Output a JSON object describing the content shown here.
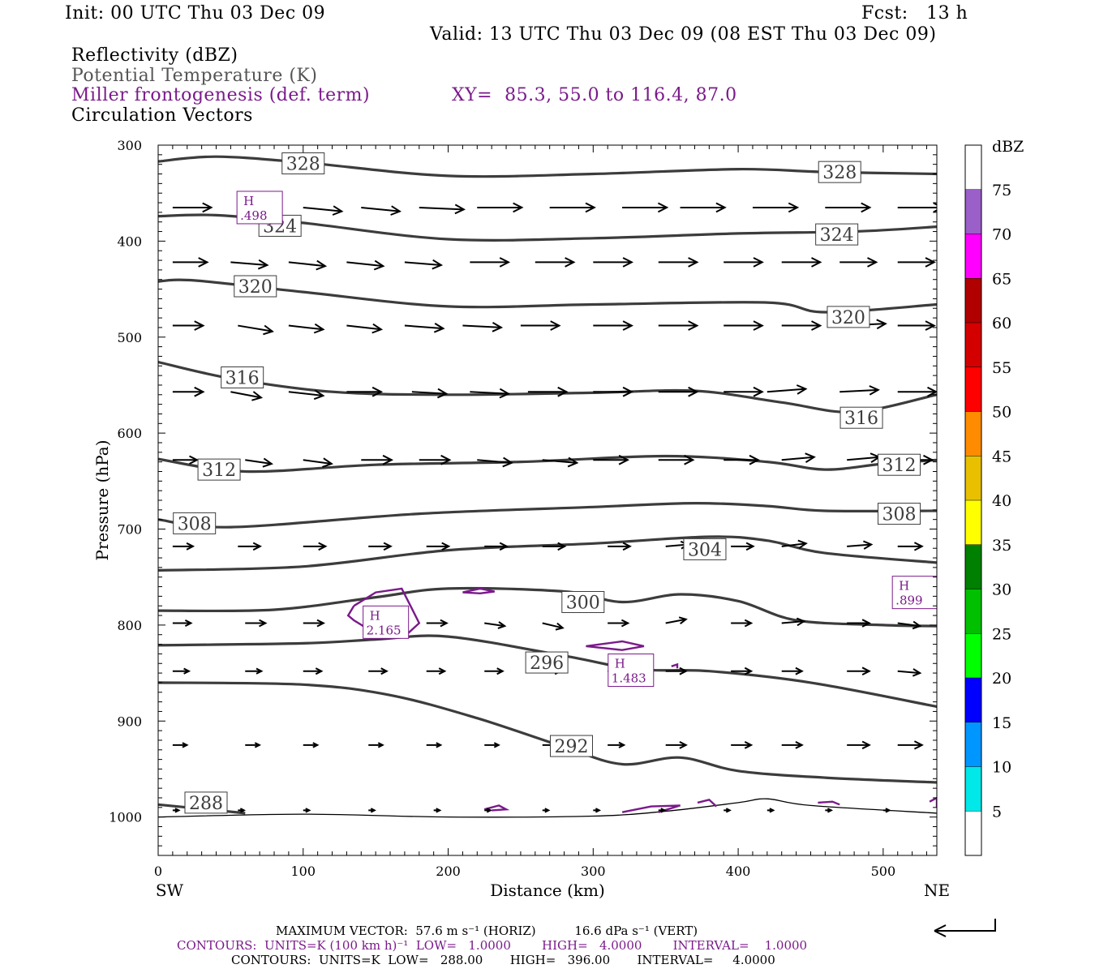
{
  "header": {
    "init": "Init: 00 UTC Thu 03 Dec 09",
    "fcst": "Fcst:   13 h",
    "valid": "Valid: 13 UTC Thu 03 Dec 09 (08 EST Thu 03 Dec 09)",
    "field1": "Reflectivity (dBZ)",
    "field2": "Potential Temperature (K)",
    "field3": "Miller frontogenesis (def. term)",
    "xy": "XY=  85.3, 55.0 to 116.4, 87.0",
    "field4": "Circulation Vectors"
  },
  "footer": {
    "max_vector": "MAXIMUM VECTOR:  57.6 m s⁻¹ (HORIZ)          16.6 dPa s⁻¹ (VERT)",
    "contours_purple": "CONTOURS:  UNITS=K (100 km h)⁻¹  LOW=   1.0000        HIGH=   4.0000        INTERVAL=    1.0000",
    "contours_black": "CONTOURS:  UNITS=K  LOW=   288.00       HIGH=   396.00       INTERVAL=     4.0000"
  },
  "colors": {
    "theta": "#3c3c3c",
    "frontogenesis": "#7a1a8a",
    "vectors": "#000000"
  },
  "chart_data": {
    "type": "cross-section",
    "xlabel": "Distance (km)",
    "ylabel": "Pressure (hPa)",
    "xlim": [
      0,
      537
    ],
    "ylim": [
      1040,
      300
    ],
    "x_ticks": [
      0,
      100,
      200,
      300,
      400,
      500
    ],
    "y_ticks": [
      300,
      400,
      500,
      600,
      700,
      800,
      900,
      1000
    ],
    "left_end": "SW",
    "right_end": "NE",
    "colorbar": {
      "title": "dBZ",
      "labels": [
        "75",
        "70",
        "65",
        "60",
        "55",
        "50",
        "45",
        "40",
        "35",
        "30",
        "25",
        "20",
        "15",
        "10",
        "5"
      ],
      "colors": [
        "#ffffff",
        "#9a5fc8",
        "#ff00ff",
        "#b00000",
        "#d40000",
        "#ff0000",
        "#ff8c00",
        "#e8c000",
        "#ffff00",
        "#008000",
        "#00c000",
        "#00ff00",
        "#0000ff",
        "#0096ff",
        "#00e8e8",
        "#ffffff"
      ]
    },
    "theta_contours": [
      {
        "value": 328,
        "points": [
          [
            0,
            317
          ],
          [
            40,
            312
          ],
          [
            100,
            318
          ],
          [
            200,
            332
          ],
          [
            300,
            330
          ],
          [
            400,
            325
          ],
          [
            460,
            328
          ],
          [
            537,
            330
          ]
        ]
      },
      {
        "value": 324,
        "points": [
          [
            0,
            374
          ],
          [
            40,
            373
          ],
          [
            100,
            381
          ],
          [
            200,
            398
          ],
          [
            300,
            397
          ],
          [
            400,
            392
          ],
          [
            480,
            390
          ],
          [
            537,
            385
          ]
        ]
      },
      {
        "value": 320,
        "points": [
          [
            0,
            442
          ],
          [
            25,
            441
          ],
          [
            100,
            453
          ],
          [
            200,
            468
          ],
          [
            300,
            466
          ],
          [
            420,
            464
          ],
          [
            460,
            474
          ],
          [
            537,
            466
          ]
        ]
      },
      {
        "value": 316,
        "points": [
          [
            0,
            526
          ],
          [
            50,
            543
          ],
          [
            120,
            557
          ],
          [
            200,
            560
          ],
          [
            300,
            558
          ],
          [
            370,
            556
          ],
          [
            430,
            568
          ],
          [
            480,
            578
          ],
          [
            537,
            560
          ]
        ]
      },
      {
        "value": 312,
        "points": [
          [
            0,
            627
          ],
          [
            60,
            640
          ],
          [
            150,
            633
          ],
          [
            250,
            630
          ],
          [
            350,
            624
          ],
          [
            420,
            630
          ],
          [
            460,
            638
          ],
          [
            500,
            632
          ],
          [
            537,
            628
          ]
        ]
      },
      {
        "value": 308,
        "points": [
          [
            0,
            690
          ],
          [
            50,
            698
          ],
          [
            180,
            684
          ],
          [
            300,
            677
          ],
          [
            370,
            673
          ],
          [
            420,
            676
          ],
          [
            460,
            681
          ],
          [
            537,
            681
          ]
        ]
      },
      {
        "value": 304,
        "points": [
          [
            0,
            743
          ],
          [
            100,
            739
          ],
          [
            200,
            722
          ],
          [
            300,
            715
          ],
          [
            380,
            708
          ],
          [
            420,
            712
          ],
          [
            460,
            725
          ],
          [
            537,
            735
          ]
        ]
      },
      {
        "value": 300,
        "points": [
          [
            0,
            785
          ],
          [
            80,
            784
          ],
          [
            150,
            771
          ],
          [
            200,
            762
          ],
          [
            280,
            765
          ],
          [
            320,
            776
          ],
          [
            360,
            768
          ],
          [
            400,
            775
          ],
          [
            440,
            795
          ],
          [
            500,
            800
          ],
          [
            537,
            801
          ]
        ]
      },
      {
        "value": 296,
        "points": [
          [
            0,
            821
          ],
          [
            100,
            819
          ],
          [
            150,
            815
          ],
          [
            200,
            812
          ],
          [
            280,
            832
          ],
          [
            330,
            846
          ],
          [
            380,
            848
          ],
          [
            450,
            860
          ],
          [
            537,
            885
          ]
        ]
      },
      {
        "value": 292,
        "points": [
          [
            0,
            860
          ],
          [
            100,
            862
          ],
          [
            160,
            873
          ],
          [
            220,
            897
          ],
          [
            280,
            927
          ],
          [
            320,
            945
          ],
          [
            360,
            938
          ],
          [
            400,
            952
          ],
          [
            460,
            959
          ],
          [
            537,
            964
          ]
        ]
      },
      {
        "value": 288,
        "points": [
          [
            0,
            987
          ],
          [
            60,
            996
          ]
        ]
      }
    ],
    "theta_labels": [
      {
        "text": "328",
        "x": 100,
        "p": 319
      },
      {
        "text": "328",
        "x": 470,
        "p": 328
      },
      {
        "text": "324",
        "x": 84,
        "p": 384
      },
      {
        "text": "324",
        "x": 468,
        "p": 393
      },
      {
        "text": "320",
        "x": 67,
        "p": 447
      },
      {
        "text": "320",
        "x": 476,
        "p": 479
      },
      {
        "text": "316",
        "x": 58,
        "p": 542
      },
      {
        "text": "316",
        "x": 485,
        "p": 584
      },
      {
        "text": "312",
        "x": 42,
        "p": 638
      },
      {
        "text": "312",
        "x": 511,
        "p": 633
      },
      {
        "text": "308",
        "x": 25,
        "p": 694
      },
      {
        "text": "308",
        "x": 511,
        "p": 684
      },
      {
        "text": "304",
        "x": 377,
        "p": 721
      },
      {
        "text": "300",
        "x": 293,
        "p": 776
      },
      {
        "text": "296",
        "x": 268,
        "p": 839
      },
      {
        "text": "292",
        "x": 285,
        "p": 926
      },
      {
        "text": "288",
        "x": 33,
        "p": 985
      }
    ],
    "ground": [
      [
        0,
        1000
      ],
      [
        100,
        997
      ],
      [
        200,
        1000
      ],
      [
        300,
        999
      ],
      [
        350,
        994
      ],
      [
        400,
        985
      ],
      [
        420,
        981
      ],
      [
        450,
        988
      ],
      [
        537,
        996
      ]
    ],
    "vector_rows": [
      {
        "p": 365,
        "xs": [
          10,
          55,
          100,
          140,
          180,
          220,
          270,
          320,
          360,
          410,
          460,
          510
        ],
        "u": [
          38,
          38,
          38,
          38,
          44,
          44,
          44,
          44,
          44,
          44,
          44,
          44
        ],
        "dp": [
          0,
          0,
          4,
          4,
          2,
          0,
          0,
          0,
          0,
          0,
          0,
          0
        ]
      },
      {
        "p": 422,
        "xs": [
          10,
          50,
          90,
          130,
          170,
          215,
          260,
          300,
          345,
          390,
          430,
          470,
          510
        ],
        "u": [
          34,
          36,
          36,
          36,
          36,
          38,
          38,
          38,
          38,
          38,
          38,
          36,
          36
        ],
        "dp": [
          0,
          3,
          4,
          4,
          3,
          0,
          0,
          0,
          0,
          0,
          0,
          0,
          0
        ]
      },
      {
        "p": 488,
        "xs": [
          10,
          55,
          90,
          130,
          170,
          210,
          250,
          300,
          345,
          390,
          430,
          475,
          510
        ],
        "u": [
          30,
          34,
          34,
          34,
          38,
          38,
          38,
          38,
          38,
          38,
          38,
          38,
          36
        ],
        "dp": [
          0,
          6,
          4,
          4,
          3,
          2,
          0,
          0,
          0,
          0,
          0,
          -2,
          0
        ]
      },
      {
        "p": 557,
        "xs": [
          10,
          50,
          90,
          130,
          175,
          215,
          255,
          300,
          345,
          390,
          420,
          470,
          510
        ],
        "u": [
          30,
          30,
          34,
          34,
          34,
          38,
          38,
          38,
          38,
          38,
          38,
          38,
          38
        ],
        "dp": [
          0,
          6,
          4,
          0,
          2,
          2,
          0,
          0,
          0,
          0,
          -3,
          -2,
          0
        ]
      },
      {
        "p": 628,
        "xs": [
          10,
          60,
          100,
          140,
          180,
          220,
          265,
          300,
          345,
          390,
          430,
          475,
          510
        ],
        "u": [
          24,
          26,
          28,
          30,
          30,
          34,
          34,
          34,
          34,
          34,
          32,
          32,
          34
        ],
        "dp": [
          0,
          4,
          4,
          0,
          0,
          3,
          3,
          0,
          0,
          0,
          -3,
          -3,
          0
        ]
      },
      {
        "p": 718,
        "xs": [
          10,
          55,
          100,
          145,
          185,
          225,
          265,
          310,
          350,
          395,
          430,
          475,
          510
        ],
        "u": [
          20,
          22,
          22,
          22,
          22,
          22,
          22,
          22,
          22,
          22,
          24,
          24,
          24
        ],
        "dp": [
          0,
          0,
          0,
          0,
          0,
          0,
          0,
          0,
          -2,
          0,
          -3,
          -2,
          0
        ]
      },
      {
        "p": 798,
        "xs": [
          10,
          60,
          100,
          145,
          185,
          225,
          265,
          310,
          350,
          395,
          430,
          475,
          510
        ],
        "u": [
          18,
          20,
          20,
          20,
          20,
          20,
          20,
          20,
          20,
          20,
          22,
          22,
          22
        ],
        "dp": [
          0,
          0,
          0,
          0,
          0,
          3,
          5,
          0,
          -4,
          0,
          -2,
          0,
          3
        ]
      },
      {
        "p": 848,
        "xs": [
          10,
          60,
          100,
          145,
          185,
          225,
          265,
          310,
          350,
          395,
          430,
          475,
          510
        ],
        "u": [
          16,
          16,
          18,
          18,
          18,
          18,
          18,
          20,
          20,
          20,
          20,
          22,
          22
        ],
        "dp": [
          0,
          0,
          0,
          0,
          0,
          0,
          0,
          0,
          0,
          0,
          0,
          0,
          2
        ]
      },
      {
        "p": 925,
        "xs": [
          10,
          60,
          100,
          145,
          185,
          225,
          265,
          310,
          350,
          395,
          430,
          475,
          510
        ],
        "u": [
          14,
          14,
          14,
          14,
          14,
          14,
          14,
          16,
          20,
          20,
          20,
          22,
          24
        ],
        "dp": [
          0,
          0,
          0,
          0,
          0,
          0,
          0,
          0,
          0,
          0,
          0,
          0,
          0
        ]
      },
      {
        "p": 993,
        "xs": [
          10,
          55,
          100,
          145,
          190,
          225,
          265,
          300,
          345,
          390,
          420,
          460,
          500
        ],
        "u": [
          6,
          6,
          6,
          6,
          6,
          6,
          6,
          6,
          6,
          6,
          6,
          6,
          6
        ],
        "dp": [
          0,
          0,
          0,
          0,
          0,
          0,
          0,
          0,
          0,
          0,
          0,
          0,
          0
        ]
      }
    ],
    "frontogenesis_contours": [
      [
        [
          135,
          780
        ],
        [
          150,
          766
        ],
        [
          168,
          762
        ],
        [
          174,
          780
        ],
        [
          180,
          798
        ],
        [
          172,
          809
        ],
        [
          150,
          809
        ],
        [
          135,
          795
        ],
        [
          131,
          790
        ],
        [
          135,
          780
        ]
      ],
      [
        [
          210,
          766
        ],
        [
          222,
          762
        ],
        [
          232,
          765
        ],
        [
          222,
          767
        ],
        [
          210,
          766
        ]
      ],
      [
        [
          295,
          822
        ],
        [
          320,
          817
        ],
        [
          335,
          822
        ],
        [
          320,
          826
        ],
        [
          295,
          822
        ]
      ],
      [
        [
          354,
          843
        ],
        [
          358,
          841
        ],
        [
          358,
          845
        ]
      ],
      [
        [
          225,
          992
        ],
        [
          235,
          988
        ],
        [
          240,
          992
        ],
        [
          230,
          993
        ]
      ],
      [
        [
          320,
          995
        ],
        [
          340,
          989
        ],
        [
          360,
          988
        ],
        [
          345,
          995
        ]
      ],
      [
        [
          372,
          985
        ],
        [
          380,
          982
        ],
        [
          385,
          989
        ]
      ],
      [
        [
          455,
          985
        ],
        [
          465,
          984
        ],
        [
          470,
          987
        ]
      ],
      [
        [
          532,
          984
        ],
        [
          537,
          980
        ],
        [
          537,
          990
        ]
      ]
    ],
    "frontogenesis_maxima": [
      {
        "letter": "H",
        "value": ".498",
        "x": 70,
        "p": 365
      },
      {
        "letter": "H",
        "value": "2.165",
        "x": 157,
        "p": 797
      },
      {
        "letter": "H",
        "value": "1.483",
        "x": 326,
        "p": 847
      },
      {
        "letter": "H",
        "value": ".899",
        "x": 522,
        "p": 766
      }
    ]
  }
}
